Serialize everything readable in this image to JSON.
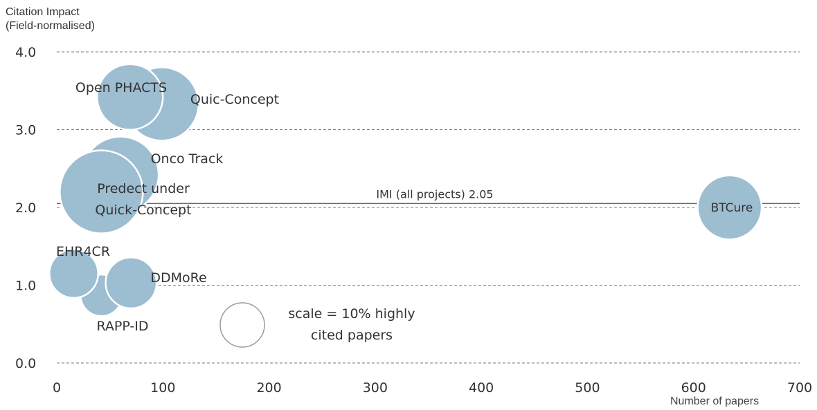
{
  "chart_data": {
    "type": "scatter",
    "ylabel_line1": "Citation Impact",
    "ylabel_line2": "(Field-normalised)",
    "xlabel": "Number of papers",
    "xlim": [
      0,
      700
    ],
    "ylim": [
      0,
      4
    ],
    "x_ticks": [
      "0",
      "100",
      "200",
      "300",
      "400",
      "500",
      "600",
      "700"
    ],
    "y_ticks": [
      "0.0",
      "1.0",
      "2.0",
      "3.0",
      "4.0"
    ],
    "grid": true,
    "reference_line": {
      "label": "IMI (all projects) 2.05",
      "y": 2.05
    },
    "bubble_color": "#9dbdd0",
    "points": [
      {
        "name": "Quic-Concept",
        "x": 99,
        "y": 3.33,
        "size": 12.5
      },
      {
        "name": "Open PHACTS",
        "x": 69,
        "y": 3.42,
        "size": 10
      },
      {
        "name": "Onco Track",
        "x": 60,
        "y": 2.42,
        "size": 13.5
      },
      {
        "name": "Predect under",
        "x": 42,
        "y": 2.2,
        "size": 16
      },
      {
        "name": "Quick-Concept",
        "x": 42,
        "y": 2.2,
        "size": 0
      },
      {
        "name": "BTCure",
        "x": 634,
        "y": 2.0,
        "size": 9.5
      },
      {
        "name": "RAPP-ID",
        "x": 42,
        "y": 0.87,
        "size": 4
      },
      {
        "name": "EHR4CR",
        "x": 16,
        "y": 1.15,
        "size": 5.5
      },
      {
        "name": "DDMoRe",
        "x": 70,
        "y": 1.03,
        "size": 6
      }
    ],
    "legend": {
      "label_line1": "scale = 10% highly",
      "label_line2": "cited papers",
      "size": 10
    }
  }
}
